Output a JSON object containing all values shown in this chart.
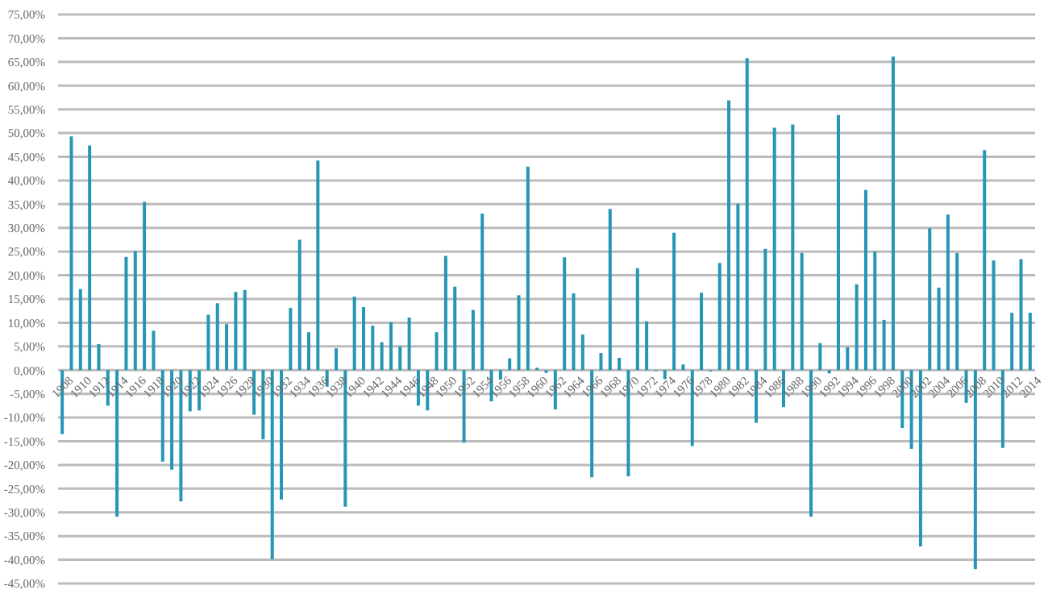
{
  "chart_data": {
    "type": "bar",
    "color": "#2596b4",
    "grid": "y",
    "ylim": [
      -45,
      75
    ],
    "yticks": [
      {
        "value": -45,
        "label": "-45,00%"
      },
      {
        "value": -40,
        "label": "-40,00%"
      },
      {
        "value": -35,
        "label": "-35,00%"
      },
      {
        "value": -30,
        "label": "-30,00%"
      },
      {
        "value": -25,
        "label": "-25,00%"
      },
      {
        "value": -20,
        "label": "-20,00%"
      },
      {
        "value": -15,
        "label": "-15,00%"
      },
      {
        "value": -10,
        "label": "-10,00%"
      },
      {
        "value": -5,
        "label": "-5,00%"
      },
      {
        "value": 0,
        "label": "0,00%"
      },
      {
        "value": 5,
        "label": "5,00%"
      },
      {
        "value": 10,
        "label": "10,00%"
      },
      {
        "value": 15,
        "label": "15,00%"
      },
      {
        "value": 20,
        "label": "20,00%"
      },
      {
        "value": 25,
        "label": "25,00%"
      },
      {
        "value": 30,
        "label": "30,00%"
      },
      {
        "value": 35,
        "label": "35,00%"
      },
      {
        "value": 40,
        "label": "40,00%"
      },
      {
        "value": 45,
        "label": "45,00%"
      },
      {
        "value": 50,
        "label": "50,00%"
      },
      {
        "value": 55,
        "label": "55,00%"
      },
      {
        "value": 60,
        "label": "60,00%"
      },
      {
        "value": 65,
        "label": "65,00%"
      },
      {
        "value": 70,
        "label": "70,00%"
      },
      {
        "value": 75,
        "label": "75,00%"
      }
    ],
    "categories": [
      "1908",
      null,
      "1910",
      null,
      "1912",
      null,
      "1914",
      null,
      "1916",
      null,
      "1918",
      null,
      "1920",
      null,
      "1922",
      null,
      "1924",
      null,
      "1926",
      null,
      "1928",
      null,
      "1930",
      null,
      "1932",
      null,
      "1934",
      null,
      "1936",
      null,
      "1938",
      null,
      "1940",
      null,
      "1942",
      null,
      "1944",
      null,
      "1946",
      null,
      "1948",
      null,
      "1950",
      null,
      "1952",
      null,
      "1954",
      null,
      "1956",
      null,
      "1958",
      null,
      "1960",
      null,
      "1962",
      null,
      "1964",
      null,
      "1966",
      null,
      "1968",
      null,
      "1970",
      null,
      "1972",
      null,
      "1974",
      null,
      "1976",
      null,
      "1978",
      null,
      "1980",
      null,
      "1982",
      null,
      "1984",
      null,
      "1986",
      null,
      "1988",
      null,
      "1990",
      null,
      "1992",
      null,
      "1994",
      null,
      "1996",
      null,
      "1998",
      null,
      "2000",
      null,
      "2002",
      null,
      "2004",
      null,
      "2006",
      null,
      "2008",
      null,
      "2010",
      null,
      "2012",
      null,
      "2014"
    ],
    "values": [
      -13.5,
      49.3,
      17.1,
      47.4,
      5.5,
      -7.5,
      -30.9,
      23.9,
      25.1,
      35.5,
      8.3,
      -19.3,
      -21.0,
      -27.7,
      -8.7,
      -8.5,
      11.7,
      14.1,
      9.7,
      16.5,
      16.9,
      -9.4,
      -14.6,
      -39.9,
      -27.3,
      13.1,
      27.5,
      8.0,
      44.2,
      -3.5,
      4.6,
      -28.8,
      15.5,
      13.3,
      9.4,
      5.9,
      10.1,
      5.0,
      11.1,
      -7.5,
      -8.5,
      8.0,
      24.1,
      17.6,
      -15.3,
      12.7,
      33.0,
      -6.6,
      -2.0,
      2.5,
      15.8,
      42.9,
      0.5,
      -0.6,
      -8.3,
      23.8,
      16.2,
      7.5,
      -22.6,
      3.6,
      34.0,
      2.6,
      -22.4,
      21.5,
      10.3,
      -0.2,
      -1.9,
      29.0,
      1.2,
      -16.0,
      16.3,
      -0.3,
      22.6,
      56.9,
      35.1,
      65.8,
      -11.1,
      25.6,
      51.1,
      -7.8,
      51.8,
      24.7,
      -30.9,
      5.7,
      -0.7,
      53.8,
      4.8,
      18.1,
      38.0,
      25.0,
      10.6,
      66.1,
      -12.2,
      -16.6,
      -37.2,
      29.9,
      17.4,
      32.8,
      24.7,
      -6.9,
      -42.0,
      46.4,
      23.1,
      -16.4,
      12.1,
      23.4,
      12.1
    ]
  }
}
